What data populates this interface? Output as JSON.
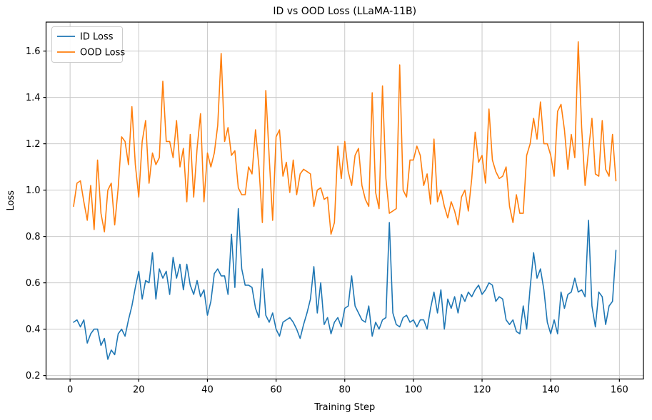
{
  "accent_colors": {
    "id_line": "#1f77b4",
    "ood_line": "#ff7f0e",
    "grid": "#c9c9c9",
    "spine": "#000000",
    "legend_border": "#cccccc"
  },
  "legend": {
    "position": "upper-left",
    "entries": [
      {
        "label": "ID Loss"
      },
      {
        "label": "OOD Loss"
      }
    ]
  },
  "chart_data": {
    "type": "line",
    "title": "ID vs OOD Loss (LLaMA-11B)",
    "xlabel": "Training Step",
    "ylabel": "Loss",
    "grid": true,
    "legend_position": "upper left",
    "xlim": [
      -7,
      167
    ],
    "ylim": [
      0.185,
      1.725
    ],
    "xticks": [
      0,
      20,
      40,
      60,
      80,
      100,
      120,
      140,
      160
    ],
    "yticks": [
      0.2,
      0.4,
      0.6,
      0.8,
      1.0,
      1.2,
      1.4,
      1.6
    ],
    "x_start": 1,
    "x_step": 1,
    "x_end": 159,
    "series": [
      {
        "name": "ID Loss",
        "color": "#1f77b4",
        "values": [
          0.43,
          0.44,
          0.41,
          0.44,
          0.34,
          0.38,
          0.4,
          0.4,
          0.33,
          0.36,
          0.27,
          0.31,
          0.29,
          0.38,
          0.4,
          0.37,
          0.44,
          0.5,
          0.58,
          0.65,
          0.53,
          0.61,
          0.6,
          0.73,
          0.53,
          0.66,
          0.62,
          0.65,
          0.55,
          0.71,
          0.62,
          0.68,
          0.57,
          0.68,
          0.59,
          0.55,
          0.61,
          0.54,
          0.57,
          0.46,
          0.52,
          0.64,
          0.66,
          0.63,
          0.63,
          0.55,
          0.81,
          0.58,
          0.92,
          0.66,
          0.59,
          0.59,
          0.58,
          0.49,
          0.45,
          0.66,
          0.46,
          0.43,
          0.47,
          0.4,
          0.37,
          0.43,
          0.44,
          0.45,
          0.43,
          0.4,
          0.36,
          0.42,
          0.47,
          0.53,
          0.67,
          0.47,
          0.6,
          0.42,
          0.45,
          0.38,
          0.43,
          0.45,
          0.41,
          0.49,
          0.5,
          0.63,
          0.5,
          0.47,
          0.44,
          0.43,
          0.5,
          0.37,
          0.43,
          0.4,
          0.44,
          0.45,
          0.86,
          0.47,
          0.42,
          0.41,
          0.45,
          0.46,
          0.43,
          0.44,
          0.41,
          0.44,
          0.44,
          0.4,
          0.49,
          0.56,
          0.47,
          0.57,
          0.4,
          0.53,
          0.49,
          0.54,
          0.47,
          0.55,
          0.52,
          0.56,
          0.54,
          0.57,
          0.59,
          0.55,
          0.57,
          0.6,
          0.59,
          0.52,
          0.54,
          0.53,
          0.44,
          0.42,
          0.44,
          0.39,
          0.38,
          0.5,
          0.4,
          0.58,
          0.73,
          0.62,
          0.66,
          0.57,
          0.43,
          0.38,
          0.44,
          0.38,
          0.56,
          0.49,
          0.55,
          0.56,
          0.62,
          0.56,
          0.57,
          0.54,
          0.87,
          0.5,
          0.41,
          0.56,
          0.54,
          0.42,
          0.5,
          0.52,
          0.74
        ]
      },
      {
        "name": "OOD Loss",
        "color": "#ff7f0e",
        "values": [
          0.93,
          1.03,
          1.04,
          0.95,
          0.87,
          1.02,
          0.83,
          1.13,
          0.9,
          0.82,
          1.0,
          1.03,
          0.85,
          1.01,
          1.23,
          1.21,
          1.11,
          1.36,
          1.11,
          0.97,
          1.21,
          1.3,
          1.03,
          1.16,
          1.11,
          1.14,
          1.47,
          1.21,
          1.21,
          1.14,
          1.3,
          1.1,
          1.18,
          0.95,
          1.24,
          0.97,
          1.18,
          1.33,
          0.95,
          1.16,
          1.1,
          1.16,
          1.28,
          1.59,
          1.21,
          1.27,
          1.15,
          1.17,
          1.01,
          0.98,
          0.98,
          1.1,
          1.07,
          1.26,
          1.1,
          0.86,
          1.43,
          1.14,
          0.87,
          1.23,
          1.26,
          1.06,
          1.12,
          0.99,
          1.13,
          0.98,
          1.07,
          1.09,
          1.08,
          1.07,
          0.93,
          1.0,
          1.01,
          0.96,
          0.97,
          0.81,
          0.86,
          1.19,
          1.05,
          1.21,
          1.08,
          1.02,
          1.15,
          1.18,
          1.02,
          0.96,
          0.93,
          1.42,
          0.99,
          0.92,
          1.45,
          1.05,
          0.9,
          0.91,
          0.92,
          1.54,
          1.0,
          0.97,
          1.13,
          1.13,
          1.19,
          1.15,
          1.02,
          1.07,
          0.94,
          1.22,
          0.95,
          1.0,
          0.93,
          0.88,
          0.95,
          0.91,
          0.85,
          0.97,
          1.0,
          0.91,
          1.05,
          1.25,
          1.12,
          1.15,
          1.03,
          1.35,
          1.13,
          1.08,
          1.05,
          1.06,
          1.1,
          0.93,
          0.86,
          0.98,
          0.9,
          0.9,
          1.15,
          1.2,
          1.31,
          1.22,
          1.38,
          1.2,
          1.2,
          1.15,
          1.06,
          1.34,
          1.37,
          1.26,
          1.09,
          1.24,
          1.14,
          1.64,
          1.27,
          1.02,
          1.17,
          1.31,
          1.07,
          1.06,
          1.3,
          1.09,
          1.06,
          1.24,
          1.04
        ]
      }
    ]
  }
}
